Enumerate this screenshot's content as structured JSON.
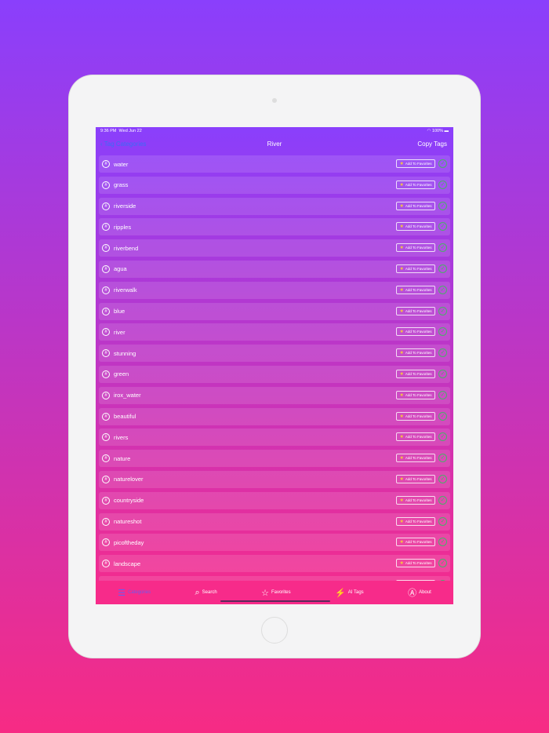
{
  "status": {
    "time": "9:36 PM",
    "date": "Wed Jun 22",
    "battery": "100%"
  },
  "nav": {
    "back": "Tag Categories",
    "title": "River",
    "copy": "Copy Tags"
  },
  "fav_label": "Add To Favorites",
  "tags": [
    "water",
    "grass",
    "riverside",
    "ripples",
    "riverbend",
    "agua",
    "riverwalk",
    "blue",
    "river",
    "stunning",
    "green",
    "irox_water",
    "beautiful",
    "rivers",
    "nature",
    "naturelover",
    "countryside",
    "natureshot",
    "picoftheday",
    "landscape",
    ""
  ],
  "tabs": [
    {
      "label": "Categories",
      "icon": "list-icon"
    },
    {
      "label": "Search",
      "icon": "search-icon"
    },
    {
      "label": "Favorites",
      "icon": "star-icon"
    },
    {
      "label": "AI Tags",
      "icon": "ai-tags-icon"
    },
    {
      "label": "About",
      "icon": "about-icon"
    }
  ],
  "colors": {
    "accent": "#3b6cf5",
    "active_tab": "#6b5cf0",
    "check": "#4caf6a"
  }
}
